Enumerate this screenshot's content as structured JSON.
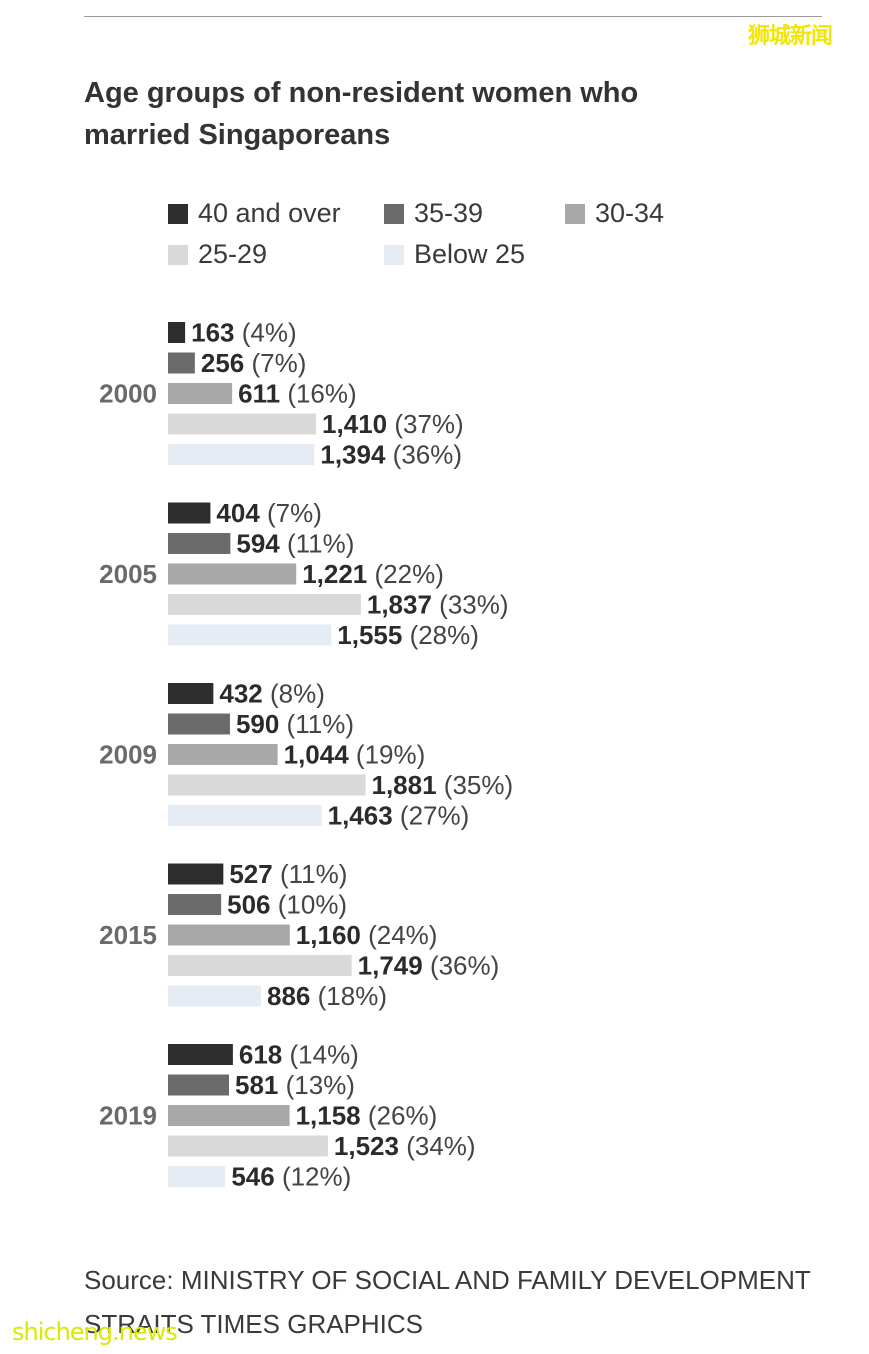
{
  "watermark_top": "狮城新闻",
  "watermark_bottom": "shicheng.news",
  "source_line1": "Source: MINISTRY OF SOCIAL AND FAMILY DEVELOPMENT",
  "source_line2": "STRAITS TIMES GRAPHICS",
  "colors": {
    "40 and over": "#2d2d2d",
    "35-39": "#6b6b6b",
    "30-34": "#a8a8a8",
    "25-29": "#d9d9d9",
    "Below 25": "#e6ecf3"
  },
  "chart_data": {
    "type": "bar",
    "orientation": "horizontal",
    "title": "Age groups of non-resident women who married Singaporeans",
    "categories": [
      "2000",
      "2005",
      "2009",
      "2015",
      "2019"
    ],
    "series": [
      {
        "name": "40 and over",
        "values": [
          163,
          404,
          432,
          527,
          618
        ],
        "percent_labels": [
          "(4%)",
          "(7%)",
          "(8%)",
          "(11%)",
          "(14%)"
        ],
        "value_labels": [
          "163",
          "404",
          "432",
          "527",
          "618"
        ]
      },
      {
        "name": "35-39",
        "values": [
          256,
          594,
          590,
          506,
          581
        ],
        "percent_labels": [
          "(7%)",
          "(11%)",
          "(11%)",
          "(10%)",
          "(13%)"
        ],
        "value_labels": [
          "256",
          "594",
          "590",
          "506",
          "581"
        ]
      },
      {
        "name": "30-34",
        "values": [
          611,
          1221,
          1044,
          1160,
          1158
        ],
        "percent_labels": [
          "(16%)",
          "(22%)",
          "(19%)",
          "(24%)",
          "(26%)"
        ],
        "value_labels": [
          "611",
          "1,221",
          "1,044",
          "1,160",
          "1,158"
        ]
      },
      {
        "name": "25-29",
        "values": [
          1410,
          1837,
          1881,
          1749,
          1523
        ],
        "percent_labels": [
          "(37%)",
          "(33%)",
          "(35%)",
          "(36%)",
          "(34%)"
        ],
        "value_labels": [
          "1,410",
          "1,837",
          "1,881",
          "1,749",
          "1,523"
        ]
      },
      {
        "name": "Below 25",
        "values": [
          1394,
          1555,
          1463,
          886,
          546
        ],
        "percent_labels": [
          "(36%)",
          "(28%)",
          "(27%)",
          "(18%)",
          "(12%)"
        ],
        "value_labels": [
          "1,394",
          "1,555",
          "1,463",
          "886",
          "546"
        ]
      }
    ],
    "xlim": [
      0,
      2000
    ],
    "legend_position": "top",
    "grid": false
  }
}
